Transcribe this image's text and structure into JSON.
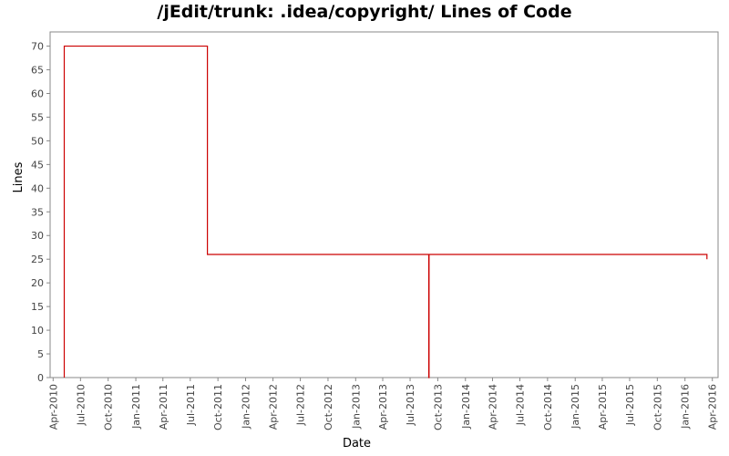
{
  "chart_data": {
    "type": "line",
    "title": "/jEdit/trunk: .idea/copyright/ Lines of Code",
    "xlabel": "Date",
    "ylabel": "Lines",
    "ylim": [
      0,
      73
    ],
    "xlim": [
      "2010-03-22",
      "2016-04-20"
    ],
    "yticks": [
      0,
      5,
      10,
      15,
      20,
      25,
      30,
      35,
      40,
      45,
      50,
      55,
      60,
      65,
      70
    ],
    "xticks": [
      {
        "date": "2010-04-01",
        "label": "Apr-2010"
      },
      {
        "date": "2010-07-01",
        "label": "Jul-2010"
      },
      {
        "date": "2010-10-01",
        "label": "Oct-2010"
      },
      {
        "date": "2011-01-01",
        "label": "Jan-2011"
      },
      {
        "date": "2011-04-01",
        "label": "Apr-2011"
      },
      {
        "date": "2011-07-01",
        "label": "Jul-2011"
      },
      {
        "date": "2011-10-01",
        "label": "Oct-2011"
      },
      {
        "date": "2012-01-01",
        "label": "Jan-2012"
      },
      {
        "date": "2012-04-01",
        "label": "Apr-2012"
      },
      {
        "date": "2012-07-01",
        "label": "Jul-2012"
      },
      {
        "date": "2012-10-01",
        "label": "Oct-2012"
      },
      {
        "date": "2013-01-01",
        "label": "Jan-2013"
      },
      {
        "date": "2013-04-01",
        "label": "Apr-2013"
      },
      {
        "date": "2013-07-01",
        "label": "Jul-2013"
      },
      {
        "date": "2013-10-01",
        "label": "Oct-2013"
      },
      {
        "date": "2014-01-01",
        "label": "Jan-2014"
      },
      {
        "date": "2014-04-01",
        "label": "Apr-2014"
      },
      {
        "date": "2014-07-01",
        "label": "Jul-2014"
      },
      {
        "date": "2014-10-01",
        "label": "Oct-2014"
      },
      {
        "date": "2015-01-01",
        "label": "Jan-2015"
      },
      {
        "date": "2015-04-01",
        "label": "Apr-2015"
      },
      {
        "date": "2015-07-01",
        "label": "Jul-2015"
      },
      {
        "date": "2015-10-01",
        "label": "Oct-2015"
      },
      {
        "date": "2016-01-01",
        "label": "Jan-2016"
      },
      {
        "date": "2016-04-01",
        "label": "Apr-2016"
      }
    ],
    "series": [
      {
        "color": "#cc0000",
        "points": [
          {
            "x": "2010-05-08",
            "y": 0
          },
          {
            "x": "2010-05-08",
            "y": 70
          },
          {
            "x": "2011-08-27",
            "y": 70
          },
          {
            "x": "2011-08-27",
            "y": 26
          },
          {
            "x": "2013-09-01",
            "y": 26
          },
          {
            "x": "2013-09-01",
            "y": 0
          },
          {
            "x": "2013-09-02",
            "y": 0
          },
          {
            "x": "2013-09-02",
            "y": 26
          },
          {
            "x": "2016-03-14",
            "y": 26
          },
          {
            "x": "2016-03-14",
            "y": 25
          }
        ]
      }
    ],
    "grid": false,
    "legend": "none"
  },
  "colors": {
    "line": "#cc0000",
    "axis": "#888888",
    "frame": "#888888",
    "text": "#444444"
  }
}
